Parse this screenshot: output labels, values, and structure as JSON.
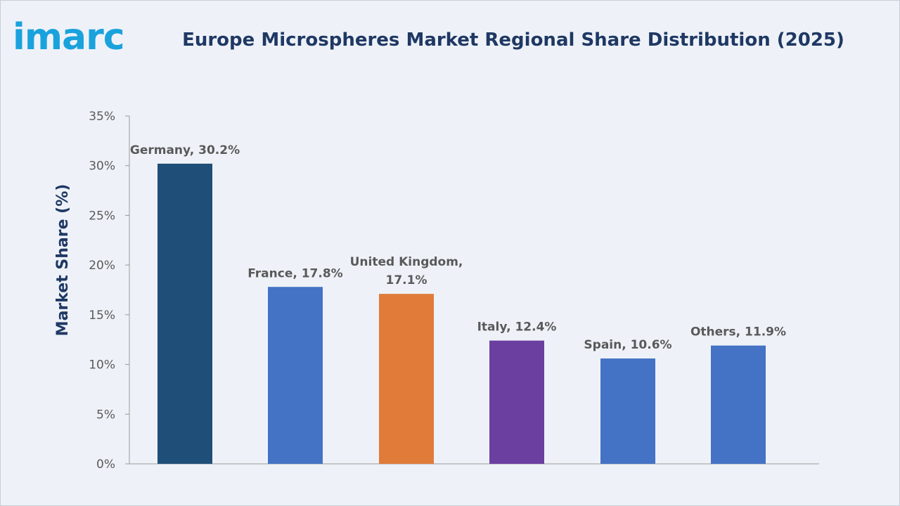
{
  "brand": {
    "logo_text": "imarc",
    "logo_color": "#1aa2dc"
  },
  "chart_data": {
    "type": "bar",
    "title": "Europe Microspheres Market Regional Share Distribution (2025)",
    "xlabel": "",
    "ylabel": "Market Share (%)",
    "ylim": [
      0,
      35
    ],
    "ytick_step": 5,
    "ytick_suffix": "%",
    "grid": false,
    "legend": "none",
    "categories": [
      "Germany",
      "France",
      "United Kingdom",
      "Italy",
      "Spain",
      "Others"
    ],
    "values": [
      30.2,
      17.8,
      17.1,
      12.4,
      10.6,
      11.9
    ],
    "data_labels": [
      [
        "Germany, 30.2%"
      ],
      [
        "France, 17.8%"
      ],
      [
        "United Kingdom,",
        "17.1%"
      ],
      [
        "Italy, 12.4%"
      ],
      [
        "Spain, 10.6%"
      ],
      [
        "Others, 11.9%"
      ]
    ],
    "bar_colors": [
      "#1f4e79",
      "#4472c4",
      "#e07b39",
      "#6b3fa0",
      "#4472c4",
      "#4472c4"
    ],
    "title_color": "#1f3864",
    "axis_color": "#999999"
  }
}
